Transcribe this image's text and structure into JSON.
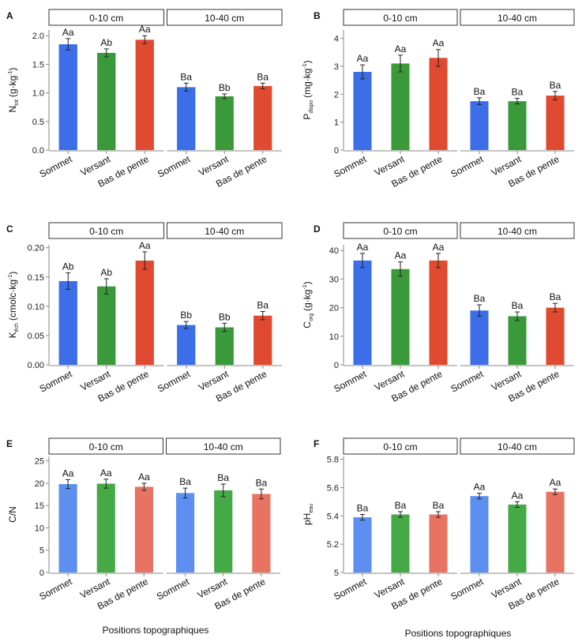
{
  "x_axis_title": "Positions topographiques",
  "colors": {
    "sommet": "#3b6ee8",
    "versant": "#3a9a3a",
    "bas": "#e04a30",
    "sommet_light": "#5c8ff0",
    "versant_light": "#45aa45",
    "bas_light": "#e87362",
    "strip_border": "#333333",
    "axis": "#888888"
  },
  "chart_data": [
    {
      "panel": "A",
      "type": "bar",
      "ylabel_main": "N",
      "ylabel_sub": "tot",
      "ylabel_unit": "(g·kg",
      "ylabel_sup": "-1",
      "ylabel_close": ")",
      "facets": [
        "0-10 cm",
        "10-40 cm"
      ],
      "categories": [
        "Sommet",
        "Versant",
        "Bas de pente"
      ],
      "ylim": [
        0,
        2.1
      ],
      "yticks": [
        0.0,
        0.5,
        1.0,
        1.5,
        2.0
      ],
      "ytick_labels": [
        "0.0",
        "0.5",
        "1.0",
        "1.5",
        "2.0"
      ],
      "series": [
        {
          "facet": "0-10 cm",
          "values": [
            1.85,
            1.7,
            1.93
          ],
          "errors": [
            0.1,
            0.07,
            0.07
          ],
          "labels": [
            "Aa",
            "Ab",
            "Aa"
          ]
        },
        {
          "facet": "10-40 cm",
          "values": [
            1.1,
            0.94,
            1.12
          ],
          "errors": [
            0.07,
            0.04,
            0.05
          ],
          "labels": [
            "Ba",
            "Bb",
            "Ba"
          ]
        }
      ],
      "shade": "dark"
    },
    {
      "panel": "B",
      "type": "bar",
      "ylabel_main": "P",
      "ylabel_sub": "dispo",
      "ylabel_unit": "(mg·kg",
      "ylabel_sup": "-1",
      "ylabel_close": ")",
      "facets": [
        "0-10 cm",
        "10-40 cm"
      ],
      "categories": [
        "Sommet",
        "Versant",
        "Bas de pente"
      ],
      "ylim": [
        0,
        4.3
      ],
      "yticks": [
        0,
        1,
        2,
        3,
        4
      ],
      "ytick_labels": [
        "0",
        "1",
        "2",
        "3",
        "4"
      ],
      "series": [
        {
          "facet": "0-10 cm",
          "values": [
            2.8,
            3.1,
            3.3
          ],
          "errors": [
            0.25,
            0.3,
            0.3
          ],
          "labels": [
            "Aa",
            "Aa",
            "Aa"
          ]
        },
        {
          "facet": "10-40 cm",
          "values": [
            1.75,
            1.75,
            1.95
          ],
          "errors": [
            0.12,
            0.1,
            0.15
          ],
          "labels": [
            "Ba",
            "Ba",
            "Ba"
          ]
        }
      ],
      "shade": "dark"
    },
    {
      "panel": "C",
      "type": "bar",
      "ylabel_main": "K",
      "ylabel_sub": "éch",
      "ylabel_unit": "(cmolc·kg",
      "ylabel_sup": "-1",
      "ylabel_close": ")",
      "facets": [
        "0-10 cm",
        "10-40 cm"
      ],
      "categories": [
        "Sommet",
        "Versant",
        "Bas de pente"
      ],
      "ylim": [
        0,
        0.205
      ],
      "yticks": [
        0.0,
        0.05,
        0.1,
        0.15,
        0.2
      ],
      "ytick_labels": [
        "0.00",
        "0.05",
        "0.10",
        "0.15",
        "0.20"
      ],
      "series": [
        {
          "facet": "0-10 cm",
          "values": [
            0.143,
            0.134,
            0.178
          ],
          "errors": [
            0.014,
            0.013,
            0.015
          ],
          "labels": [
            "Ab",
            "Ab",
            "Aa"
          ]
        },
        {
          "facet": "10-40 cm",
          "values": [
            0.068,
            0.064,
            0.084
          ],
          "errors": [
            0.006,
            0.007,
            0.007
          ],
          "labels": [
            "Bb",
            "Bb",
            "Ba"
          ]
        }
      ],
      "shade": "dark"
    },
    {
      "panel": "D",
      "type": "bar",
      "ylabel_main": "C",
      "ylabel_sub": "org",
      "ylabel_unit": "(g·kg",
      "ylabel_sup": "-1",
      "ylabel_close": ")",
      "facets": [
        "0-10 cm",
        "10-40 cm"
      ],
      "categories": [
        "Sommet",
        "Versant",
        "Bas de pente"
      ],
      "ylim": [
        0,
        42
      ],
      "yticks": [
        0,
        10,
        20,
        30,
        40
      ],
      "ytick_labels": [
        "0",
        "10",
        "20",
        "30",
        "40"
      ],
      "series": [
        {
          "facet": "0-10 cm",
          "values": [
            36.5,
            33.5,
            36.5
          ],
          "errors": [
            2.5,
            2.5,
            2.5
          ],
          "labels": [
            "Aa",
            "Aa",
            "Aa"
          ]
        },
        {
          "facet": "10-40 cm",
          "values": [
            19.0,
            17.0,
            20.0
          ],
          "errors": [
            2.0,
            1.5,
            1.5
          ],
          "labels": [
            "Ba",
            "Ba",
            "Ba"
          ]
        }
      ],
      "shade": "dark"
    },
    {
      "panel": "E",
      "type": "bar",
      "ylabel_main": "C/N",
      "ylabel_sub": "",
      "ylabel_unit": "",
      "ylabel_sup": "",
      "ylabel_close": "",
      "facets": [
        "0-10 cm",
        "10-40 cm"
      ],
      "categories": [
        "Sommet",
        "Versant",
        "Bas de pente"
      ],
      "ylim": [
        0,
        26
      ],
      "yticks": [
        0,
        5,
        10,
        15,
        20,
        25
      ],
      "ytick_labels": [
        "0",
        "5",
        "10",
        "15",
        "20",
        "25"
      ],
      "series": [
        {
          "facet": "0-10 cm",
          "values": [
            19.8,
            19.9,
            19.2
          ],
          "errors": [
            1.0,
            1.0,
            0.8
          ],
          "labels": [
            "Aa",
            "Aa",
            "Aa"
          ]
        },
        {
          "facet": "10-40 cm",
          "values": [
            17.8,
            18.4,
            17.6
          ],
          "errors": [
            1.1,
            1.4,
            1.1
          ],
          "labels": [
            "Ba",
            "Ba",
            "Ba"
          ]
        }
      ],
      "shade": "light"
    },
    {
      "panel": "F",
      "type": "bar",
      "ylabel_main": "pH",
      "ylabel_sub": "eau",
      "ylabel_unit": "",
      "ylabel_sup": "",
      "ylabel_close": "",
      "facets": [
        "0-10 cm",
        "10-40 cm"
      ],
      "categories": [
        "Sommet",
        "Versant",
        "Bas de pente"
      ],
      "ylim": [
        5.0,
        5.82
      ],
      "yticks": [
        5.0,
        5.2,
        5.4,
        5.6,
        5.8
      ],
      "ytick_labels": [
        "5",
        "5.2",
        "5.4",
        "5.6",
        "5.8"
      ],
      "series": [
        {
          "facet": "0-10 cm",
          "values": [
            5.39,
            5.41,
            5.41
          ],
          "errors": [
            0.02,
            0.02,
            0.02
          ],
          "labels": [
            "Ba",
            "Ba",
            "Ba"
          ]
        },
        {
          "facet": "10-40 cm",
          "values": [
            5.54,
            5.48,
            5.57
          ],
          "errors": [
            0.02,
            0.02,
            0.02
          ],
          "labels": [
            "Aa",
            "Aa",
            "Aa"
          ]
        }
      ],
      "shade": "light"
    }
  ]
}
